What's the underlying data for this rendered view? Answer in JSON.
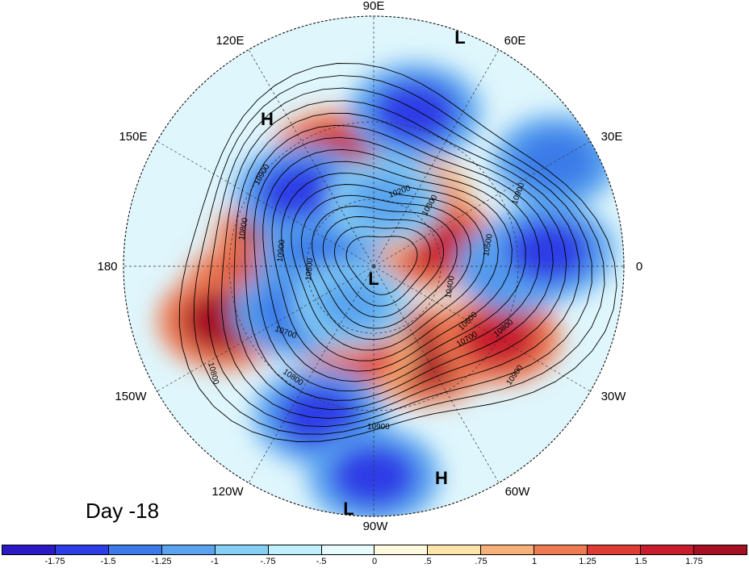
{
  "day_label": "Day -18",
  "longitude_labels": {
    "lon_90E": "90E",
    "lon_60E": "60E",
    "lon_30E": "30E",
    "lon_0": "0",
    "lon_30W": "30W",
    "lon_60W": "60W",
    "lon_90W": "90W",
    "lon_120W": "120W",
    "lon_150W": "150W",
    "lon_180": "180",
    "lon_150E": "150E",
    "lon_120E": "120E"
  },
  "pressure_centers": [
    {
      "name": "L-top",
      "label": "L"
    },
    {
      "name": "H-upper-left",
      "label": "H"
    },
    {
      "name": "L-pole",
      "label": "L"
    },
    {
      "name": "H-lower-right",
      "label": "H"
    },
    {
      "name": "L-bottom",
      "label": "L"
    }
  ],
  "contour_labels": [
    "10900",
    "10800",
    "10700",
    "10800",
    "10800",
    "10900",
    "10200",
    "10300",
    "10400",
    "10500",
    "10600",
    "10700",
    "10800",
    "10900",
    "10900",
    "10800",
    "10900"
  ],
  "colorbar": {
    "colors": [
      "#2a19c4",
      "#2e3ee6",
      "#3b7ae8",
      "#5aa4ef",
      "#86cff4",
      "#bff0fb",
      "#e8fbff",
      "#fff9e0",
      "#fde4a8",
      "#f7b078",
      "#ee7a52",
      "#e03c36",
      "#c81d2d",
      "#a50f22"
    ],
    "tick_labels": [
      "-1.75",
      "-1.5",
      "-1.25",
      "-1",
      "-.75",
      "-.5",
      "0",
      ".5",
      ".75",
      "1",
      "1.25",
      "1.5",
      "1.75"
    ]
  },
  "anomaly_field": {
    "positive": [
      {
        "lon": 165,
        "lat": 48,
        "value": 1.75
      },
      {
        "lon": -170,
        "lat": 35,
        "value": 1.5
      },
      {
        "lon": -160,
        "lat": 25,
        "value": 1.75
      },
      {
        "lon": 110,
        "lat": 40,
        "value": 1.5
      },
      {
        "lon": 60,
        "lat": 55,
        "value": 1.25
      },
      {
        "lon": 20,
        "lat": 60,
        "value": 1.5
      },
      {
        "lon": -60,
        "lat": 45,
        "value": 1.75
      },
      {
        "lon": -30,
        "lat": 30,
        "value": 1.5
      },
      {
        "lon": -100,
        "lat": 50,
        "value": 1.25
      },
      {
        "lon": -130,
        "lat": 60,
        "value": 1.5
      },
      {
        "lon": 130,
        "lat": 65,
        "value": 1.5
      },
      {
        "lon": 100,
        "lat": 70,
        "value": 1.25
      }
    ],
    "negative": [
      {
        "lon": 75,
        "lat": 25,
        "value": -1.75
      },
      {
        "lon": 135,
        "lat": 45,
        "value": -1.75
      },
      {
        "lon": -110,
        "lat": 25,
        "value": -1.75
      },
      {
        "lon": -90,
        "lat": 10,
        "value": -1.75
      },
      {
        "lon": 0,
        "lat": 30,
        "value": -1.5
      },
      {
        "lon": 5,
        "lat": 20,
        "value": -1.75
      },
      {
        "lon": 175,
        "lat": 65,
        "value": -1.5
      },
      {
        "lon": -150,
        "lat": 50,
        "value": -1.5
      },
      {
        "lon": 30,
        "lat": 10,
        "value": -1.5
      },
      {
        "lon": 80,
        "lat": 60,
        "value": -1.25
      },
      {
        "lon": -120,
        "lat": 70,
        "value": -1.25
      }
    ]
  }
}
